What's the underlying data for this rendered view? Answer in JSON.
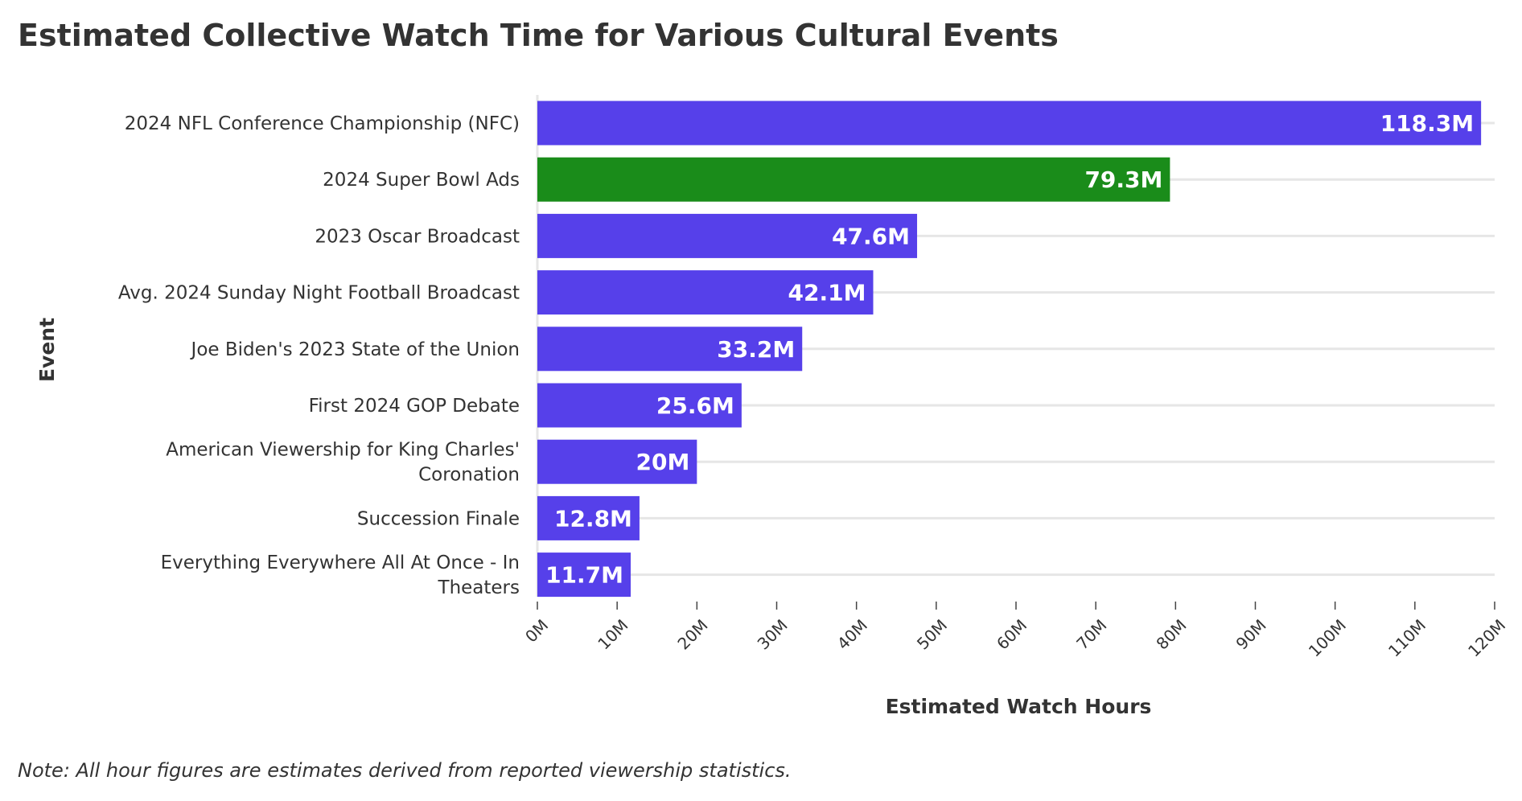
{
  "chart_data": {
    "type": "bar",
    "orientation": "horizontal",
    "title": "Estimated Collective Watch Time for Various Cultural Events",
    "xlabel": "Estimated Watch Hours",
    "ylabel": "Event",
    "note": "Note: All hour figures are estimates derived from reported viewership statistics.",
    "categories": [
      "2024 NFL Conference Championship (NFC)",
      "2024 Super Bowl Ads",
      "2023 Oscar Broadcast",
      "Avg. 2024 Sunday Night Football Broadcast",
      "Joe Biden's 2023 State of the Union",
      "First 2024 GOP Debate",
      "American Viewership for King Charles' Coronation",
      "Succession Finale",
      "Everything Everywhere All At Once - In Theaters"
    ],
    "values": [
      118.3,
      79.3,
      47.6,
      42.1,
      33.2,
      25.6,
      20,
      12.8,
      11.7
    ],
    "value_labels": [
      "118.3M",
      "79.3M",
      "47.6M",
      "42.1M",
      "33.2M",
      "25.6M",
      "20M",
      "12.8M",
      "11.7M"
    ],
    "value_unit": "millions of hours",
    "bar_colors": [
      "#5640ea",
      "#1a8c1a",
      "#5640ea",
      "#5640ea",
      "#5640ea",
      "#5640ea",
      "#5640ea",
      "#5640ea",
      "#5640ea"
    ],
    "xlim": [
      0,
      120
    ],
    "xticks": [
      0,
      10,
      20,
      30,
      40,
      50,
      60,
      70,
      80,
      90,
      100,
      110,
      120
    ],
    "xtick_labels": [
      "0M",
      "10M",
      "20M",
      "30M",
      "40M",
      "50M",
      "60M",
      "70M",
      "80M",
      "90M",
      "100M",
      "110M",
      "120M"
    ],
    "grid": "horizontal",
    "legend": "none"
  },
  "colors": {
    "primary_bar": "#5640ea",
    "highlight_bar": "#1a8c1a",
    "text": "#333333",
    "grid": "#e6e6e6"
  }
}
